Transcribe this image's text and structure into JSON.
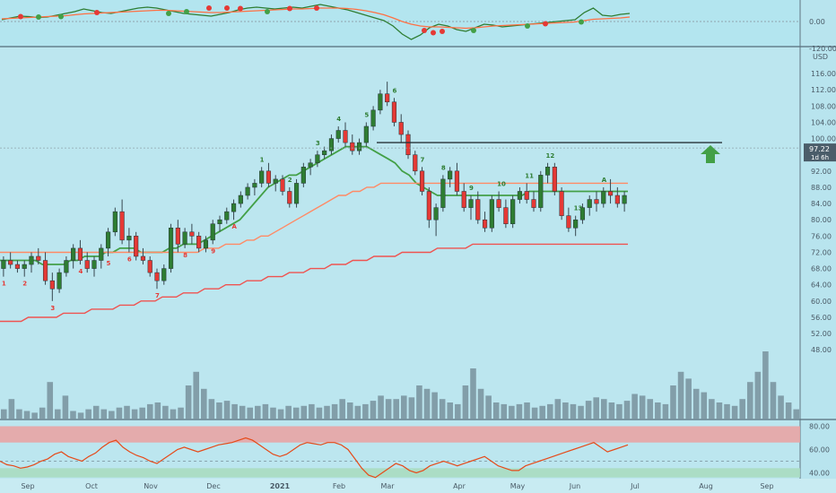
{
  "chart_data": [
    {
      "type": "line",
      "panel": "oscillator-top",
      "y_ticks": [
        "0.00",
        "-120.00"
      ],
      "zero_line": 0,
      "series": [
        {
          "color": "#2e7d32",
          "values": [
            4,
            8,
            12,
            11,
            9,
            10,
            14,
            18,
            22,
            28,
            24,
            20,
            18,
            22,
            26,
            30,
            32,
            30,
            26,
            22,
            18,
            16,
            14,
            12,
            16,
            20,
            26,
            30,
            32,
            30,
            28,
            30,
            32,
            30,
            34,
            38,
            34,
            30,
            26,
            20,
            14,
            8,
            2,
            -10,
            -28,
            -40,
            -30,
            -14,
            -6,
            -10,
            -18,
            -22,
            -14,
            -6,
            -8,
            -12,
            -10,
            -8,
            -6,
            -4,
            -2,
            0,
            2,
            4,
            20,
            30,
            14,
            12,
            16,
            18
          ]
        },
        {
          "color": "#ff7043",
          "values": [
            6,
            7,
            8,
            9,
            10,
            11,
            12,
            13,
            15,
            17,
            18,
            19,
            20,
            21,
            22,
            23,
            24,
            25,
            25,
            24,
            23,
            22,
            21,
            20,
            20,
            21,
            22,
            23,
            24,
            25,
            26,
            27,
            28,
            28,
            29,
            30,
            30,
            30,
            29,
            27,
            24,
            20,
            15,
            8,
            0,
            -6,
            -10,
            -12,
            -12,
            -13,
            -14,
            -15,
            -14,
            -12,
            -10,
            -9,
            -8,
            -7,
            -6,
            -5,
            -4,
            -3,
            -2,
            -1,
            2,
            5,
            6,
            7,
            8,
            10
          ]
        }
      ],
      "markers_red": [
        [
          3,
          11
        ],
        [
          20,
          20
        ],
        [
          45,
          30
        ],
        [
          49,
          30
        ],
        [
          52,
          29
        ],
        [
          63,
          29
        ],
        [
          69,
          30
        ],
        [
          93,
          -20
        ],
        [
          95,
          -25
        ],
        [
          97,
          -22
        ],
        [
          120,
          -5
        ]
      ],
      "markers_green": [
        [
          7,
          10
        ],
        [
          12,
          11
        ],
        [
          36,
          18
        ],
        [
          40,
          22
        ],
        [
          58,
          22
        ],
        [
          104,
          -20
        ],
        [
          116,
          -10
        ],
        [
          128,
          -1
        ]
      ]
    },
    {
      "type": "candlestick",
      "panel": "price",
      "currency": "USD",
      "price_label": "97.22",
      "countdown_label": "1d 6h",
      "y_ticks": [
        116,
        112,
        108,
        104,
        100,
        96,
        92,
        88,
        84,
        80,
        76,
        72,
        68,
        64,
        60,
        56,
        52,
        48
      ],
      "horizontal_level": 99,
      "x_labels": [
        "Sep",
        "Oct",
        "Nov",
        "Dec",
        "2021",
        "Feb",
        "Mar",
        "Apr",
        "May",
        "Jun",
        "Jul",
        "Aug",
        "Sep"
      ],
      "ohlc": [
        [
          68,
          71,
          66,
          70
        ],
        [
          70,
          72,
          68,
          69
        ],
        [
          69,
          70,
          67,
          68
        ],
        [
          68,
          70,
          66,
          69
        ],
        [
          69,
          72,
          67,
          71
        ],
        [
          71,
          73,
          69,
          70
        ],
        [
          70,
          72,
          64,
          65
        ],
        [
          65,
          67,
          60,
          63
        ],
        [
          63,
          68,
          62,
          67
        ],
        [
          67,
          71,
          66,
          70
        ],
        [
          70,
          74,
          68,
          73
        ],
        [
          73,
          75,
          69,
          70
        ],
        [
          70,
          72,
          67,
          68
        ],
        [
          68,
          71,
          66,
          70
        ],
        [
          70,
          74,
          68,
          73
        ],
        [
          73,
          78,
          71,
          77
        ],
        [
          77,
          83,
          76,
          82
        ],
        [
          82,
          85,
          74,
          75
        ],
        [
          75,
          78,
          72,
          76
        ],
        [
          76,
          77,
          70,
          71
        ],
        [
          71,
          73,
          69,
          70
        ],
        [
          70,
          71,
          66,
          67
        ],
        [
          67,
          68,
          63,
          65
        ],
        [
          65,
          69,
          64,
          68
        ],
        [
          68,
          79,
          67,
          78
        ],
        [
          78,
          80,
          72,
          74
        ],
        [
          74,
          78,
          73,
          77
        ],
        [
          77,
          79,
          74,
          76
        ],
        [
          76,
          77,
          72,
          73
        ],
        [
          73,
          76,
          72,
          75
        ],
        [
          75,
          80,
          74,
          79
        ],
        [
          79,
          81,
          77,
          80
        ],
        [
          80,
          83,
          79,
          82
        ],
        [
          82,
          85,
          80,
          84
        ],
        [
          84,
          87,
          83,
          86
        ],
        [
          86,
          89,
          85,
          88
        ],
        [
          88,
          90,
          86,
          89
        ],
        [
          89,
          93,
          88,
          92
        ],
        [
          92,
          94,
          88,
          89
        ],
        [
          89,
          91,
          87,
          90
        ],
        [
          90,
          91,
          86,
          87
        ],
        [
          87,
          88,
          83,
          84
        ],
        [
          84,
          90,
          83,
          89
        ],
        [
          89,
          94,
          88,
          93
        ],
        [
          93,
          95,
          91,
          94
        ],
        [
          94,
          97,
          93,
          96
        ],
        [
          96,
          98,
          95,
          97
        ],
        [
          97,
          101,
          96,
          100
        ],
        [
          100,
          103,
          99,
          102
        ],
        [
          102,
          104,
          98,
          99
        ],
        [
          99,
          101,
          96,
          97
        ],
        [
          97,
          100,
          96,
          99
        ],
        [
          99,
          104,
          98,
          103
        ],
        [
          103,
          108,
          102,
          107
        ],
        [
          107,
          112,
          106,
          111
        ],
        [
          111,
          114,
          108,
          109
        ],
        [
          109,
          110,
          103,
          104
        ],
        [
          104,
          106,
          99,
          101
        ],
        [
          101,
          102,
          95,
          96
        ],
        [
          96,
          97,
          91,
          92
        ],
        [
          92,
          93,
          86,
          87
        ],
        [
          87,
          88,
          78,
          80
        ],
        [
          80,
          84,
          76,
          83
        ],
        [
          83,
          91,
          82,
          90
        ],
        [
          90,
          93,
          88,
          92
        ],
        [
          92,
          94,
          86,
          87
        ],
        [
          87,
          89,
          82,
          83
        ],
        [
          83,
          86,
          80,
          85
        ],
        [
          85,
          87,
          79,
          80
        ],
        [
          80,
          82,
          77,
          78
        ],
        [
          78,
          86,
          77,
          85
        ],
        [
          85,
          87,
          82,
          83
        ],
        [
          83,
          85,
          78,
          79
        ],
        [
          79,
          86,
          78,
          85
        ],
        [
          85,
          88,
          84,
          87
        ],
        [
          87,
          89,
          84,
          85
        ],
        [
          85,
          87,
          82,
          83
        ],
        [
          83,
          92,
          82,
          91
        ],
        [
          91,
          94,
          89,
          93
        ],
        [
          93,
          94,
          86,
          87
        ],
        [
          87,
          88,
          80,
          81
        ],
        [
          81,
          83,
          77,
          78
        ],
        [
          78,
          81,
          76,
          80
        ],
        [
          80,
          84,
          79,
          83
        ],
        [
          83,
          86,
          81,
          85
        ],
        [
          85,
          87,
          82,
          84
        ],
        [
          84,
          88,
          83,
          87
        ],
        [
          87,
          90,
          84,
          86
        ],
        [
          86,
          88,
          83,
          84
        ],
        [
          84,
          87,
          82,
          86
        ]
      ],
      "ma": [
        {
          "color": "#43a047",
          "values": [
            70,
            70,
            70,
            70,
            70,
            70,
            69,
            69,
            69,
            69,
            70,
            70,
            71,
            71,
            71,
            72,
            72,
            73,
            73,
            73,
            72,
            72,
            72,
            72,
            73,
            73,
            74,
            74,
            74,
            75,
            76,
            77,
            78,
            79,
            80,
            82,
            84,
            86,
            88,
            89,
            90,
            91,
            91,
            92,
            93,
            94,
            95,
            96,
            97,
            98,
            98,
            98,
            98,
            97,
            96,
            95,
            94,
            92,
            91,
            89,
            88,
            87,
            86,
            86,
            86,
            86,
            86,
            86,
            86,
            86,
            86,
            86,
            86,
            86,
            86,
            87,
            87,
            87,
            87,
            87,
            87,
            87,
            87,
            87,
            87,
            87,
            87,
            87,
            87,
            87
          ]
        },
        {
          "color": "#ff8a65",
          "values": [
            72,
            72,
            72,
            72,
            72,
            72,
            72,
            72,
            72,
            72,
            72,
            72,
            72,
            72,
            72,
            72,
            72,
            72,
            72,
            72,
            72,
            72,
            72,
            72,
            72,
            72,
            72,
            72,
            72,
            73,
            73,
            73,
            74,
            74,
            74,
            75,
            75,
            76,
            76,
            77,
            78,
            79,
            80,
            81,
            82,
            83,
            84,
            85,
            86,
            86,
            87,
            87,
            88,
            88,
            89,
            89,
            89,
            89,
            89,
            89,
            89,
            89,
            89,
            89,
            89,
            89,
            89,
            89,
            89,
            89,
            89,
            89,
            89,
            89,
            89,
            89,
            89,
            89,
            89,
            89,
            89,
            89,
            89,
            89,
            89,
            89,
            89,
            89,
            89,
            89
          ]
        },
        {
          "color": "#ef5350",
          "values": [
            55,
            55,
            55,
            55,
            56,
            56,
            56,
            56,
            56,
            57,
            57,
            57,
            57,
            58,
            58,
            58,
            58,
            59,
            59,
            59,
            60,
            60,
            60,
            61,
            61,
            61,
            62,
            62,
            62,
            63,
            63,
            63,
            64,
            64,
            64,
            65,
            65,
            65,
            66,
            66,
            66,
            67,
            67,
            67,
            68,
            68,
            68,
            69,
            69,
            69,
            70,
            70,
            70,
            71,
            71,
            71,
            71,
            72,
            72,
            72,
            72,
            72,
            73,
            73,
            73,
            73,
            73,
            74,
            74,
            74,
            74,
            74,
            74,
            74,
            74,
            74,
            74,
            74,
            74,
            74,
            74,
            74,
            74,
            74,
            74,
            74,
            74,
            74,
            74,
            74
          ]
        }
      ],
      "volume": [
        6,
        12,
        6,
        5,
        4,
        7,
        22,
        6,
        14,
        5,
        4,
        6,
        8,
        6,
        5,
        7,
        8,
        6,
        7,
        9,
        10,
        8,
        6,
        7,
        20,
        28,
        18,
        12,
        10,
        11,
        9,
        8,
        7,
        8,
        9,
        7,
        6,
        8,
        7,
        8,
        9,
        7,
        8,
        9,
        12,
        10,
        8,
        9,
        11,
        14,
        12,
        12,
        14,
        13,
        20,
        18,
        16,
        12,
        10,
        9,
        20,
        30,
        18,
        14,
        10,
        9,
        8,
        9,
        10,
        7,
        8,
        9,
        12,
        10,
        9,
        8,
        11,
        13,
        12,
        10,
        9,
        11,
        15,
        14,
        12,
        10,
        9,
        20,
        28,
        24,
        18,
        16,
        12,
        10,
        9,
        8,
        12,
        22,
        28,
        40,
        22,
        14,
        10,
        6
      ],
      "counts": [
        {
          "t": "1",
          "c": "red"
        },
        {
          "t": "2",
          "c": "red"
        },
        {
          "t": "3",
          "c": "red"
        },
        {
          "t": "4",
          "c": "red"
        },
        {
          "t": "5",
          "c": "red"
        },
        {
          "t": "6",
          "c": "red"
        },
        {
          "t": "7",
          "c": "red"
        },
        {
          "t": "8",
          "c": "red"
        },
        {
          "t": "9",
          "c": "red"
        },
        {
          "t": "A",
          "c": "red"
        },
        {
          "t": "1",
          "c": "green"
        },
        {
          "t": "2",
          "c": "green"
        },
        {
          "t": "3",
          "c": "green"
        },
        {
          "t": "4",
          "c": "green"
        },
        {
          "t": "5",
          "c": "green"
        },
        {
          "t": "6",
          "c": "green"
        },
        {
          "t": "7",
          "c": "green"
        },
        {
          "t": "8",
          "c": "green"
        },
        {
          "t": "9",
          "c": "green"
        },
        {
          "t": "10",
          "c": "green"
        },
        {
          "t": "11",
          "c": "green"
        },
        {
          "t": "12",
          "c": "green"
        },
        {
          "t": "13",
          "c": "green"
        },
        {
          "t": "A",
          "c": "green"
        }
      ]
    },
    {
      "type": "line",
      "panel": "rsi",
      "y_ticks": [
        "80.00",
        "60.00",
        "40.00"
      ],
      "band_upper": 70,
      "band_lower": 30,
      "midline": 50,
      "values": [
        50,
        47,
        46,
        44,
        45,
        47,
        50,
        52,
        56,
        58,
        54,
        52,
        50,
        54,
        57,
        62,
        66,
        68,
        62,
        58,
        55,
        53,
        50,
        48,
        52,
        56,
        60,
        62,
        60,
        58,
        60,
        62,
        64,
        65,
        66,
        68,
        70,
        68,
        64,
        60,
        56,
        54,
        56,
        60,
        64,
        66,
        65,
        64,
        66,
        66,
        64,
        60,
        52,
        44,
        38,
        36,
        40,
        44,
        48,
        46,
        42,
        40,
        42,
        46,
        48,
        50,
        48,
        46,
        48,
        50,
        52,
        54,
        50,
        46,
        44,
        42,
        42,
        46,
        48,
        50,
        52,
        54,
        56,
        58,
        60,
        62,
        64,
        66,
        62,
        58,
        60,
        62,
        64
      ]
    }
  ]
}
